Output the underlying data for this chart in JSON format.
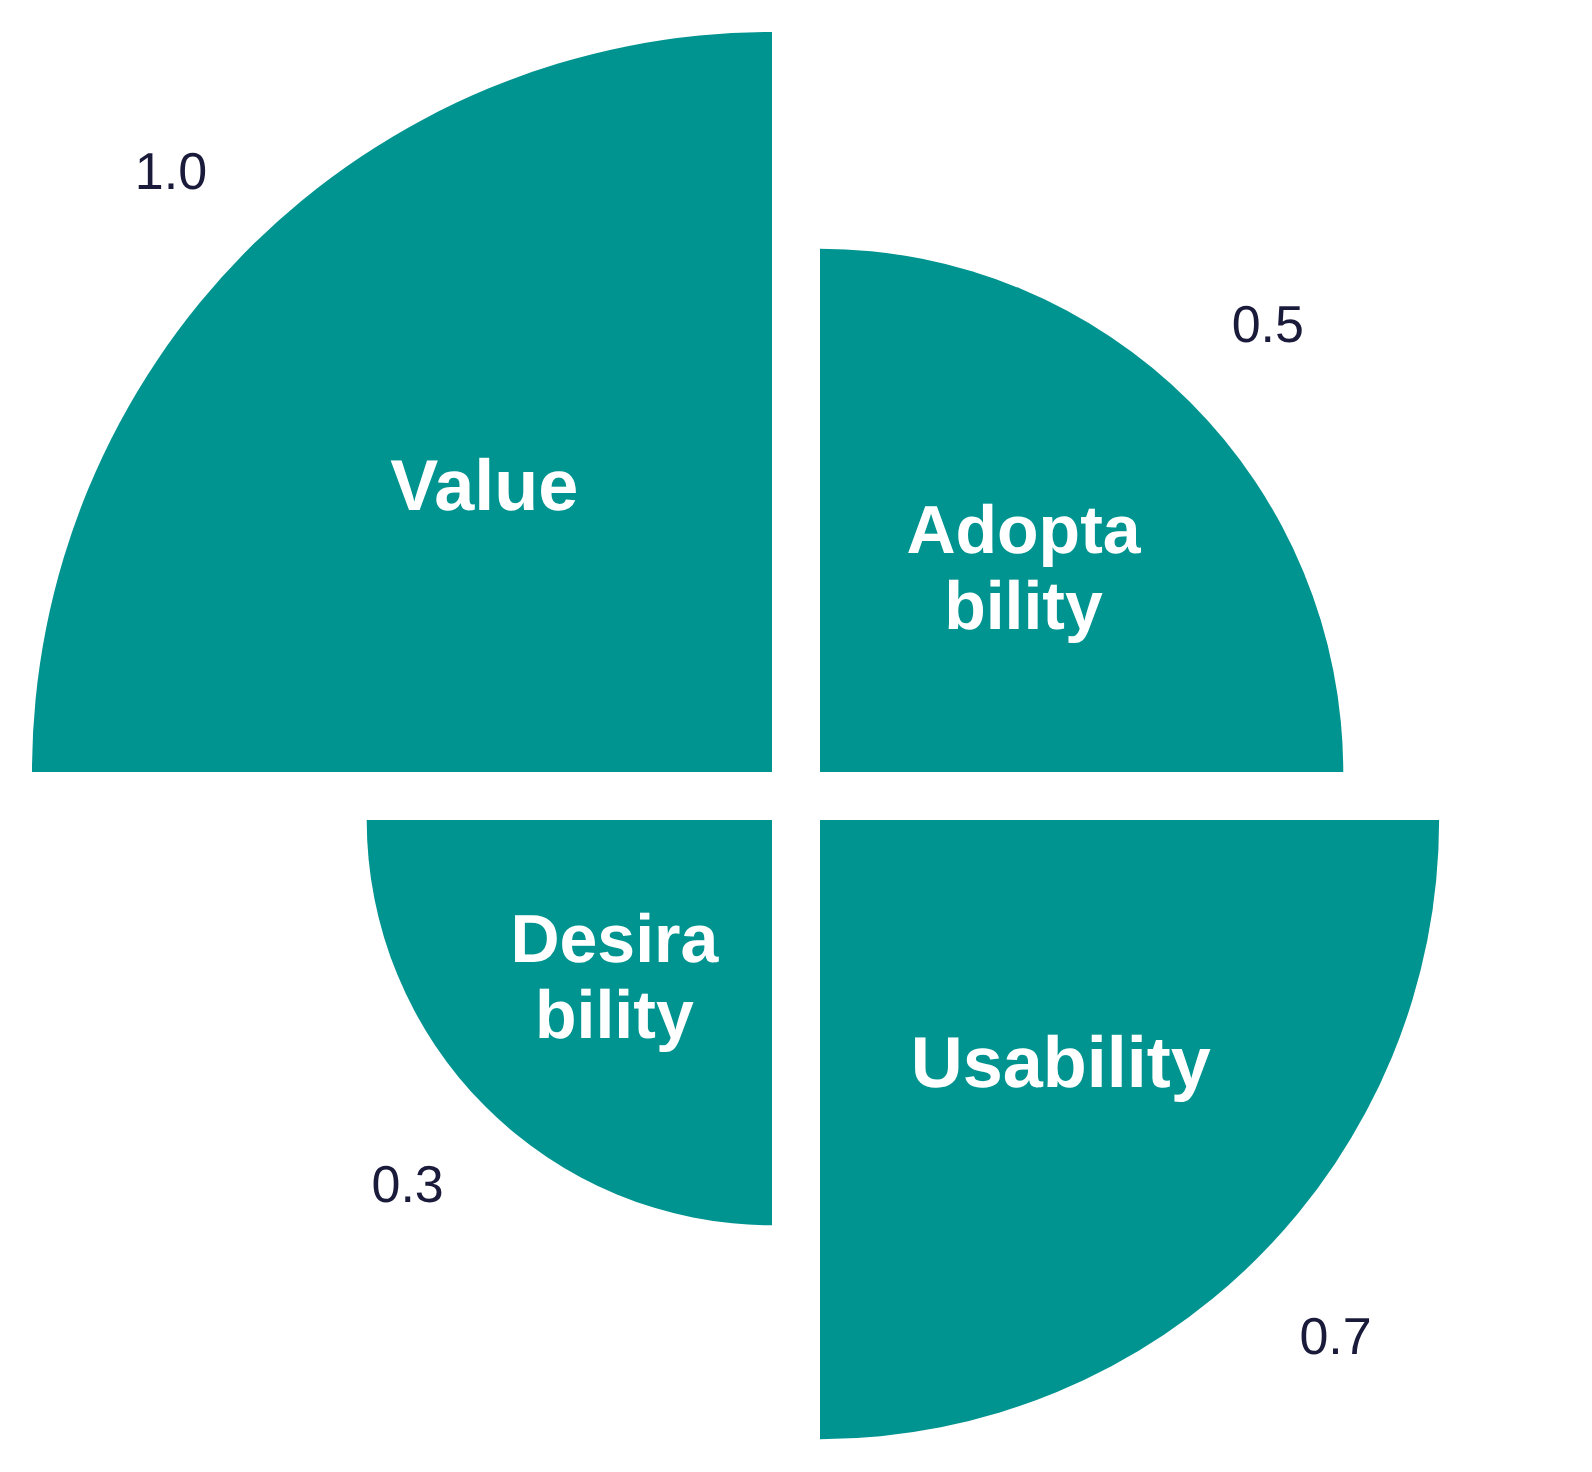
{
  "chart_data": {
    "type": "other",
    "categories": [
      "Value",
      "Adopta\nbility",
      "Usability",
      "Desira\nbility"
    ],
    "values": [
      1.0,
      0.5,
      0.7,
      0.3
    ],
    "value_labels": [
      "1.0",
      "0.5",
      "0.7",
      "0.3"
    ],
    "color": "#009490"
  }
}
